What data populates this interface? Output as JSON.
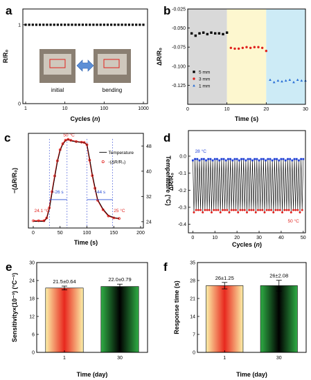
{
  "chart_data": [
    {
      "type": "scatter",
      "panel": "a",
      "xlabel": "Cycles (",
      "xlabel_var": "n",
      "xlabel_end": ")",
      "ylabel": "R/R₀",
      "xscale": "log",
      "xlim": [
        1,
        1000
      ],
      "ylim": [
        0,
        1.2
      ],
      "x_tick_labels": [
        "1",
        "10",
        "100",
        "1000"
      ],
      "y_tick_labels": [
        "0",
        "1"
      ],
      "series": [
        {
          "x": [
            1,
            2,
            3,
            5,
            10,
            20,
            50,
            100,
            200,
            500,
            1000
          ],
          "values": [
            1.0,
            1.0,
            1.0,
            1.0,
            1.0,
            1.0,
            1.0,
            1.0,
            1.0,
            1.0,
            1.0
          ]
        }
      ],
      "inset_labels": [
        "initial",
        "bending"
      ]
    },
    {
      "type": "scatter",
      "panel": "b",
      "xlabel": "Time (s)",
      "ylabel": "ΔR/R₀",
      "xlim": [
        0,
        30
      ],
      "ylim": [
        -0.15,
        -0.025
      ],
      "x_tick_labels": [
        "0",
        "10",
        "20",
        "30"
      ],
      "y_tick_labels": [
        "-0.025",
        "-0.050",
        "-0.075",
        "-0.100",
        "-0.125"
      ],
      "regions": [
        {
          "x": [
            0,
            10
          ],
          "color": "#d9d9d9"
        },
        {
          "x": [
            10,
            20
          ],
          "color": "#fdf7cf"
        },
        {
          "x": [
            20,
            30
          ],
          "color": "#cdebf6"
        }
      ],
      "series": [
        {
          "name": "5 mm",
          "color": "#000000",
          "marker": "square",
          "x": [
            1,
            2,
            3,
            4,
            5,
            6,
            7,
            8,
            9,
            10
          ],
          "values": [
            -0.057,
            -0.06,
            -0.057,
            -0.056,
            -0.058,
            -0.056,
            -0.057,
            -0.057,
            -0.058,
            -0.056
          ]
        },
        {
          "name": "3 mm",
          "color": "#e0201c",
          "marker": "circle",
          "x": [
            11,
            12,
            13,
            14,
            15,
            16,
            17,
            18,
            19,
            20
          ],
          "values": [
            -0.076,
            -0.077,
            -0.077,
            -0.076,
            -0.075,
            -0.076,
            -0.075,
            -0.075,
            -0.076,
            -0.08
          ]
        },
        {
          "name": "1 mm",
          "color": "#2a6fd6",
          "marker": "triangle",
          "x": [
            21,
            22,
            23,
            24,
            25,
            26,
            27,
            28,
            29,
            30
          ],
          "values": [
            -0.118,
            -0.121,
            -0.119,
            -0.12,
            -0.119,
            -0.118,
            -0.121,
            -0.118,
            -0.119,
            -0.119
          ]
        }
      ]
    },
    {
      "type": "line",
      "panel": "c",
      "xlabel": "Time (s)",
      "ylabel": "−(ΔR/R₀)",
      "ylabel_right": "Temperature (°C)",
      "xlim": [
        0,
        200
      ],
      "y_right_lim": [
        22,
        52
      ],
      "x_tick_labels": [
        "0",
        "50",
        "100",
        "150",
        "200"
      ],
      "y_right_tick_labels": [
        "24",
        "32",
        "40",
        "48"
      ],
      "series": [
        {
          "name": "Temperature",
          "color": "#000000",
          "x": [
            0,
            10,
            20,
            25,
            30,
            35,
            40,
            45,
            50,
            55,
            60,
            65,
            70,
            80,
            90,
            95,
            100,
            105,
            110,
            115,
            120,
            130,
            140,
            150,
            160
          ],
          "values": [
            24.1,
            24.1,
            24.1,
            25,
            28,
            33,
            38,
            43,
            46.5,
            48.5,
            49.6,
            50,
            49.6,
            49.3,
            49.1,
            49,
            48.5,
            44,
            39,
            35,
            31,
            28,
            26,
            25.3,
            25
          ]
        },
        {
          "name": "-(ΔR/R₀)",
          "color": "#e0201c",
          "x": [
            0,
            10,
            20,
            25,
            30,
            35,
            40,
            45,
            50,
            55,
            60,
            65,
            70,
            80,
            90,
            95,
            100,
            105,
            110,
            115,
            120,
            130,
            140,
            150,
            160
          ],
          "values": [
            24.3,
            24.3,
            24.3,
            25.2,
            28.4,
            33.5,
            38.5,
            43.3,
            46.8,
            48.7,
            49.8,
            50.1,
            49.8,
            49.4,
            49.2,
            49.1,
            48.4,
            43.5,
            38.6,
            34.6,
            30.8,
            27.8,
            25.8,
            25.2,
            25
          ]
        }
      ],
      "annotations": [
        "24.1 °C",
        "50 °C",
        "25 °C",
        "~26 s",
        "~44 s"
      ]
    },
    {
      "type": "line",
      "panel": "d",
      "xlabel": "Cycles (",
      "xlabel_var": "n",
      "xlabel_end": ")",
      "ylabel": "ΔR/R₀",
      "xlim": [
        -2,
        51
      ],
      "ylim": [
        -0.45,
        0.15
      ],
      "x_tick_labels": [
        "0",
        "10",
        "20",
        "30",
        "40",
        "50"
      ],
      "y_tick_labels": [
        "0.0",
        "-0.1",
        "-0.2",
        "-0.3",
        "-0.4"
      ],
      "cycles": 50,
      "series": [
        {
          "name": "28 °C",
          "color": "#1f3fd6",
          "level": -0.02
        },
        {
          "name": "50 °C",
          "color": "#e0201c",
          "level": -0.32
        }
      ],
      "annotations": [
        "28 °C",
        "50 °C"
      ]
    },
    {
      "type": "bar",
      "panel": "e",
      "xlabel": "Time (day)",
      "ylabel": "Sensitivity×(10⁻³) (°C⁻¹)",
      "categories": [
        "1",
        "30"
      ],
      "values": [
        21.5,
        22.0
      ],
      "errors": [
        0.64,
        0.79
      ],
      "value_labels": [
        "21.5±0.64",
        "22.0±0.79"
      ],
      "ylim": [
        0,
        30
      ],
      "y_tick_labels": [
        "0",
        "6",
        "12",
        "18",
        "24",
        "30"
      ]
    },
    {
      "type": "bar",
      "panel": "f",
      "xlabel": "Time (day)",
      "ylabel": "Response time (s)",
      "categories": [
        "1",
        "30"
      ],
      "values": [
        26,
        26
      ],
      "errors": [
        1.25,
        2.08
      ],
      "value_labels": [
        "26±1.25",
        "26±2.08"
      ],
      "ylim": [
        0,
        35
      ],
      "y_tick_labels": [
        "0",
        "7",
        "14",
        "21",
        "28",
        "35"
      ]
    }
  ],
  "panel_labels": [
    "a",
    "b",
    "c",
    "d",
    "e",
    "f"
  ],
  "colors": {
    "black": "#000000",
    "red": "#e0201c",
    "blue": "#2a6fd6",
    "navy": "#1f3fd6"
  }
}
